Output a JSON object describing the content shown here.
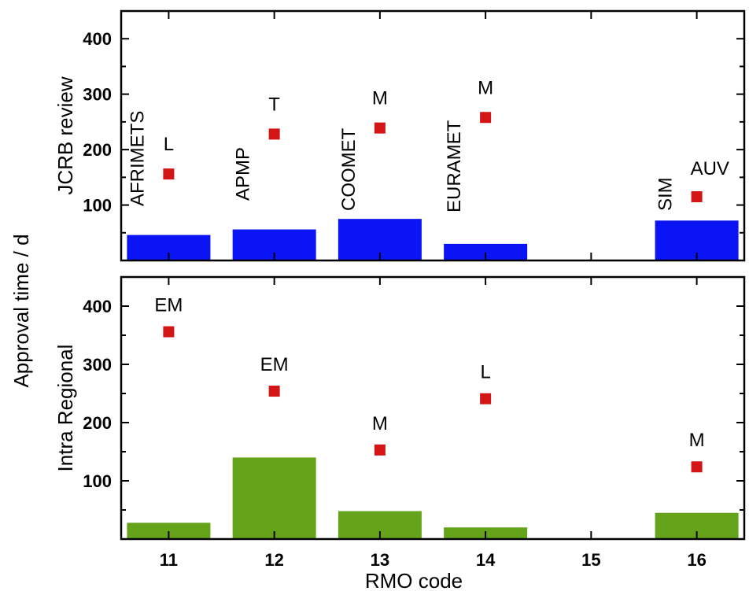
{
  "chart_data": [
    {
      "type": "bar",
      "panel": "top",
      "ylabel": "JCRB review",
      "ylim": [
        0,
        450
      ],
      "y_ticks": [
        100,
        200,
        300,
        400
      ],
      "x_ticks": [
        11,
        12,
        13,
        14,
        15,
        16
      ],
      "xlim": [
        10.55,
        16.45
      ],
      "bars": {
        "color": "#0a14f5",
        "x": [
          11,
          12,
          13,
          14,
          16
        ],
        "values": [
          46,
          56,
          75,
          30,
          72
        ]
      },
      "points": {
        "color": "#d41515",
        "x": [
          11,
          12,
          13,
          14,
          16
        ],
        "values": [
          156,
          228,
          239,
          258,
          115
        ],
        "labels": [
          "L",
          "T",
          "M",
          "M",
          "AUV"
        ]
      },
      "rmo_labels": [
        {
          "x": 11,
          "text": "AFRIMETS"
        },
        {
          "x": 12,
          "text": "APMP"
        },
        {
          "x": 13,
          "text": "COOMET"
        },
        {
          "x": 14,
          "text": "EURAMET"
        },
        {
          "x": 16,
          "text": "SIM"
        }
      ],
      "grid": false
    },
    {
      "type": "bar",
      "panel": "bottom",
      "ylabel": "Intra Regional",
      "ylim": [
        0,
        450
      ],
      "y_ticks": [
        100,
        200,
        300,
        400
      ],
      "x_ticks": [
        11,
        12,
        13,
        14,
        15,
        16
      ],
      "xlim": [
        10.55,
        16.45
      ],
      "xlabel": "RMO code",
      "bars": {
        "color": "#65a31a",
        "x": [
          11,
          12,
          13,
          14,
          16
        ],
        "values": [
          28,
          140,
          48,
          20,
          45
        ]
      },
      "points": {
        "color": "#d41515",
        "x": [
          11,
          12,
          13,
          14,
          16
        ],
        "values": [
          356,
          254,
          153,
          241,
          124
        ],
        "labels": [
          "EM",
          "EM",
          "M",
          "L",
          "M"
        ]
      },
      "grid": false
    }
  ],
  "shared_ylabel": "Approval time / d"
}
